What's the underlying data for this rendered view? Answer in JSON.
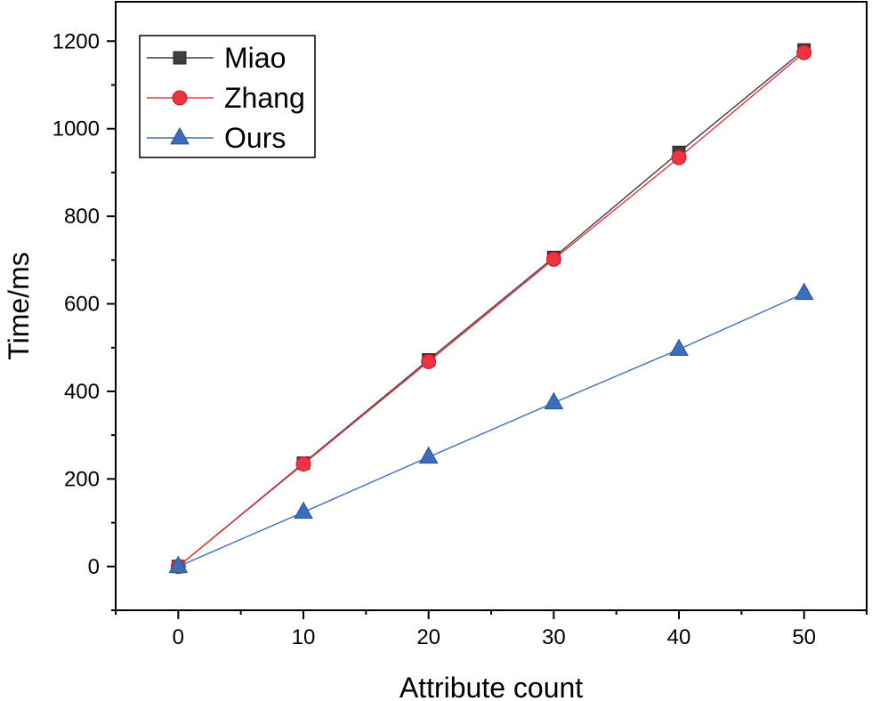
{
  "chart_data": {
    "type": "line",
    "title": "",
    "xlabel": "Attribute count",
    "ylabel": "Time/ms",
    "xlim": [
      -5,
      55
    ],
    "ylim": [
      -100,
      1290
    ],
    "x_ticks": [
      0,
      10,
      20,
      30,
      40,
      50
    ],
    "y_ticks": [
      0,
      200,
      400,
      600,
      800,
      1000,
      1200
    ],
    "x_tick_labels": [
      "0",
      "10",
      "20",
      "30",
      "40",
      "50"
    ],
    "y_tick_labels": [
      "0",
      "200",
      "400",
      "600",
      "800",
      "1000",
      "1200"
    ],
    "grid": false,
    "legend_position": "top-left",
    "x": [
      0,
      10,
      20,
      30,
      40,
      50
    ],
    "series": [
      {
        "name": "Miao",
        "values": [
          0,
          236,
          472,
          706,
          946,
          1180
        ],
        "color": "#3f3f3f",
        "marker": "square"
      },
      {
        "name": "Zhang",
        "values": [
          0,
          234,
          468,
          702,
          934,
          1174
        ],
        "color": "#ef3340",
        "marker": "circle"
      },
      {
        "name": "Ours",
        "values": [
          0,
          124,
          250,
          374,
          496,
          624
        ],
        "color": "#3b6dbf",
        "marker": "triangle"
      }
    ]
  }
}
